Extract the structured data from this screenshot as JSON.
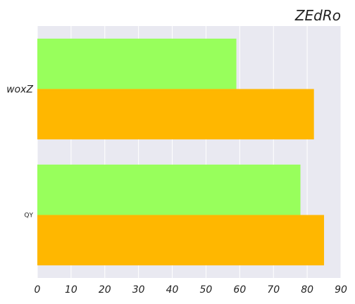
{
  "chart_data": {
    "type": "bar",
    "orientation": "horizontal",
    "title": "ZEdRo",
    "xlabel": "",
    "ylabel": "",
    "categories": [
      "woxZ",
      "QY"
    ],
    "series": [
      {
        "color": "#98ff5c",
        "values": [
          59,
          78
        ]
      },
      {
        "color": "#ffb700",
        "values": [
          82,
          85
        ]
      }
    ],
    "xlim": [
      0,
      90
    ],
    "xticks": [
      0,
      10,
      20,
      30,
      40,
      50,
      60,
      70,
      80,
      90
    ],
    "grid": true,
    "legend": "none",
    "plot_background": "#e9e9f1",
    "grid_color": "#ffffff"
  }
}
